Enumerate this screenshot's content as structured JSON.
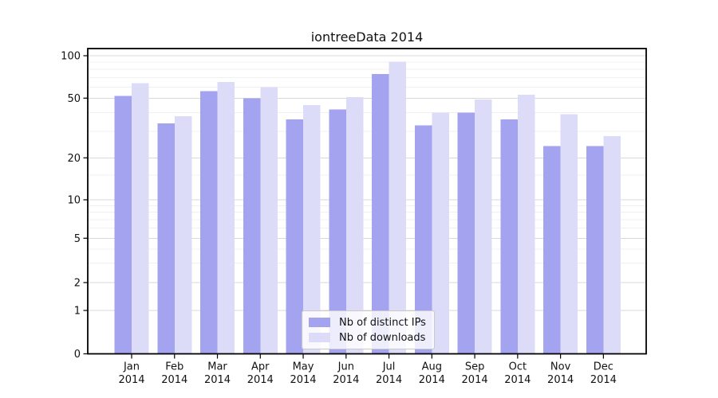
{
  "chart_data": {
    "type": "bar",
    "title": "iontreeData 2014",
    "categories": [
      "Jan 2014",
      "Feb 2014",
      "Mar 2014",
      "Apr 2014",
      "May 2014",
      "Jun 2014",
      "Jul 2014",
      "Aug 2014",
      "Sep 2014",
      "Oct 2014",
      "Nov 2014",
      "Dec 2014"
    ],
    "series": [
      {
        "name": "Nb of distinct IPs",
        "color": "#a3a3f0",
        "values": [
          52,
          34,
          56,
          50,
          36,
          42,
          74,
          33,
          40,
          36,
          24,
          24
        ]
      },
      {
        "name": "Nb of downloads",
        "color": "#dcdcf8",
        "values": [
          64,
          38,
          65,
          60,
          45,
          51,
          91,
          40,
          49,
          53,
          39,
          28
        ]
      }
    ],
    "xlabel": "",
    "ylabel": "",
    "yscale": "symlog",
    "yticks": [
      0,
      1,
      2,
      5,
      10,
      20,
      50,
      100
    ],
    "ylim": [
      0,
      112
    ],
    "grid": {
      "major": true,
      "minor": true
    },
    "legend": {
      "location": "lower center",
      "entries": [
        "Nb of distinct IPs",
        "Nb of downloads"
      ]
    },
    "colors": {
      "major_grid": "#d9d9d9",
      "minor_grid": "#f0f0f0",
      "frame": "#000000",
      "text": "#111111",
      "background": "#ffffff"
    }
  }
}
